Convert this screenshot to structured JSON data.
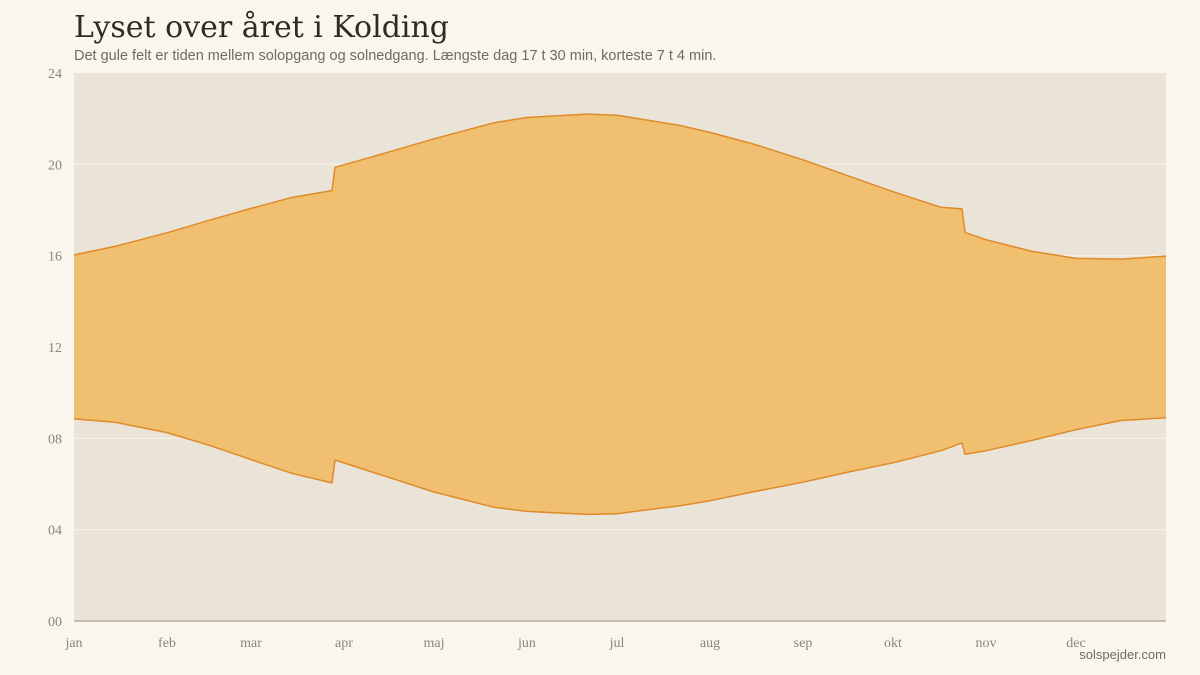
{
  "title": "Lyset over året i Kolding",
  "subtitle": "Det gule felt er tiden mellem solopgang og solnedgang. Længste dag 17 t 30 min, korteste 7 t 4 min.",
  "credit": "solspejder.com",
  "colors": {
    "page_background": "#faf6ee",
    "plot_background": "#e9e3d8",
    "daylight_fill": "#f0c070",
    "daylight_stroke": "#e08a28",
    "gridline": "#f7f1e6",
    "axis_line": "#b8ad9c",
    "tick_text": "#8c8577"
  },
  "chart_data": {
    "type": "area",
    "title": "Lyset over året i Kolding",
    "subtitle": "Det gule felt er tiden mellem solopgang og solnedgang. Længste dag 17 t 30 min, korteste 7 t 4 min.",
    "x_unit": "day_of_year",
    "xlim": [
      1,
      365
    ],
    "ylim": [
      0,
      24
    ],
    "grid": true,
    "y_ticks": [
      0,
      4,
      8,
      12,
      16,
      20,
      24
    ],
    "y_tick_labels": [
      "00",
      "04",
      "08",
      "12",
      "16",
      "20",
      "24"
    ],
    "month_labels": [
      "jan",
      "feb",
      "mar",
      "apr",
      "maj",
      "jun",
      "jul",
      "aug",
      "sep",
      "okt",
      "nov",
      "dec"
    ],
    "month_start_days": [
      1,
      32,
      60,
      91,
      121,
      152,
      182,
      213,
      244,
      274,
      305,
      335
    ],
    "series": [
      {
        "role": "sunrise",
        "x": [
          1,
          15,
          32,
          46,
          60,
          74,
          87,
          88,
          101,
          121,
          141,
          152,
          172,
          182,
          203,
          213,
          228,
          244,
          259,
          274,
          290,
          297,
          298,
          305,
          320,
          335,
          350,
          365
        ],
        "y": [
          8.85,
          8.7,
          8.25,
          7.7,
          7.07,
          6.45,
          6.05,
          7.05,
          6.5,
          5.65,
          4.98,
          4.8,
          4.67,
          4.7,
          5.05,
          5.27,
          5.67,
          6.08,
          6.52,
          6.93,
          7.46,
          7.8,
          7.3,
          7.46,
          7.9,
          8.38,
          8.78,
          8.9
        ]
      },
      {
        "role": "sunset",
        "x": [
          1,
          15,
          32,
          46,
          60,
          74,
          87,
          88,
          101,
          121,
          141,
          152,
          172,
          182,
          203,
          213,
          228,
          244,
          259,
          274,
          290,
          297,
          298,
          305,
          320,
          335,
          350,
          365
        ],
        "y": [
          16.03,
          16.42,
          17.0,
          17.55,
          18.07,
          18.56,
          18.85,
          19.87,
          20.35,
          21.12,
          21.82,
          22.05,
          22.2,
          22.15,
          21.7,
          21.4,
          20.87,
          20.2,
          19.5,
          18.8,
          18.12,
          18.05,
          17.02,
          16.7,
          16.2,
          15.88,
          15.85,
          15.98
        ]
      }
    ]
  }
}
